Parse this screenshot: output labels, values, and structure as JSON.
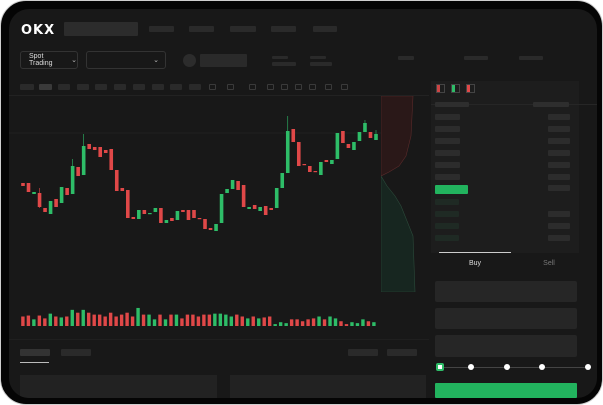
{
  "header": {
    "logo": "OKX"
  },
  "toolbar": {
    "market_selector": "Spot Trading",
    "pair_selector": ""
  },
  "trade": {
    "tabs": [
      {
        "label": "Buy",
        "active": true
      },
      {
        "label": "Sell",
        "active": false
      }
    ],
    "slider_level": 0,
    "submit_color": "#22b35e"
  },
  "colors": {
    "up": "#2ebd68",
    "down": "#e04848",
    "background": "#181818"
  },
  "chart_data": {
    "type": "candlestick",
    "candles": [
      {
        "o": 53,
        "c": 50
      },
      {
        "o": 53,
        "c": 44
      },
      {
        "o": 42,
        "c": 44
      },
      {
        "o": 43,
        "c": 29,
        "h": 48,
        "l": 28
      },
      {
        "o": 28,
        "c": 24
      },
      {
        "o": 22,
        "c": 35
      },
      {
        "o": 37,
        "c": 29
      },
      {
        "o": 33,
        "c": 49
      },
      {
        "o": 48,
        "c": 41
      },
      {
        "o": 42,
        "c": 70,
        "h": 77
      },
      {
        "o": 69,
        "c": 60
      },
      {
        "o": 61,
        "c": 90,
        "h": 102
      },
      {
        "o": 92,
        "c": 87
      },
      {
        "o": 89,
        "c": 86
      },
      {
        "o": 89,
        "c": 79
      },
      {
        "o": 86,
        "c": 83
      },
      {
        "o": 87,
        "c": 66
      },
      {
        "o": 66,
        "c": 45
      },
      {
        "o": 48,
        "c": 45
      },
      {
        "o": 46,
        "c": 18
      },
      {
        "o": 19,
        "c": 17
      },
      {
        "o": 17,
        "c": 26
      },
      {
        "o": 26,
        "c": 22
      },
      {
        "o": 22,
        "c": 23
      },
      {
        "o": 24,
        "c": 28
      },
      {
        "o": 28,
        "c": 13
      },
      {
        "o": 13,
        "c": 16
      },
      {
        "o": 18,
        "c": 15
      },
      {
        "o": 16,
        "c": 25
      },
      {
        "o": 26,
        "c": 24
      },
      {
        "o": 26,
        "c": 16
      },
      {
        "o": 26,
        "c": 18
      },
      {
        "o": 18,
        "c": 17
      },
      {
        "o": 17,
        "c": 7
      },
      {
        "o": 8,
        "c": 6
      },
      {
        "o": 5,
        "c": 12
      },
      {
        "o": 13,
        "c": 42
      },
      {
        "o": 43,
        "c": 47
      },
      {
        "o": 47,
        "c": 56
      },
      {
        "o": 55,
        "c": 46
      },
      {
        "o": 51,
        "c": 29
      },
      {
        "o": 27,
        "c": 29
      },
      {
        "o": 31,
        "c": 27
      },
      {
        "o": 25,
        "c": 29
      },
      {
        "o": 30,
        "c": 21
      },
      {
        "o": 28,
        "c": 26
      },
      {
        "o": 28,
        "c": 48
      },
      {
        "o": 48,
        "c": 63
      },
      {
        "o": 63,
        "c": 105,
        "h": 120
      },
      {
        "o": 107,
        "c": 94
      },
      {
        "o": 94,
        "c": 70
      },
      {
        "o": 72,
        "c": 71
      },
      {
        "o": 70,
        "c": 64
      },
      {
        "o": 65,
        "c": 64
      },
      {
        "o": 61,
        "c": 74
      },
      {
        "o": 76,
        "c": 74
      },
      {
        "o": 72,
        "c": 76
      },
      {
        "o": 77,
        "c": 103
      },
      {
        "o": 105,
        "c": 93
      },
      {
        "o": 92,
        "c": 88
      },
      {
        "o": 86,
        "c": 94
      },
      {
        "o": 95,
        "c": 104
      },
      {
        "o": 104,
        "c": 113,
        "h": 116
      },
      {
        "o": 104,
        "c": 98
      },
      {
        "o": 96,
        "c": 102,
        "h": 106
      }
    ],
    "volumes": [
      10,
      11,
      7,
      11,
      8,
      13,
      10,
      9,
      10,
      17,
      14,
      17,
      14,
      12,
      12,
      10,
      14,
      10,
      12,
      14,
      10,
      19,
      12,
      12,
      7,
      12,
      7,
      12,
      12,
      8,
      12,
      12,
      10,
      12,
      12,
      13,
      13,
      12,
      10,
      12,
      10,
      8,
      10,
      8,
      9,
      10,
      2,
      4,
      3,
      7,
      7,
      5,
      7,
      8,
      10,
      7,
      10,
      8,
      5,
      2,
      4,
      3,
      7,
      5,
      4
    ]
  }
}
